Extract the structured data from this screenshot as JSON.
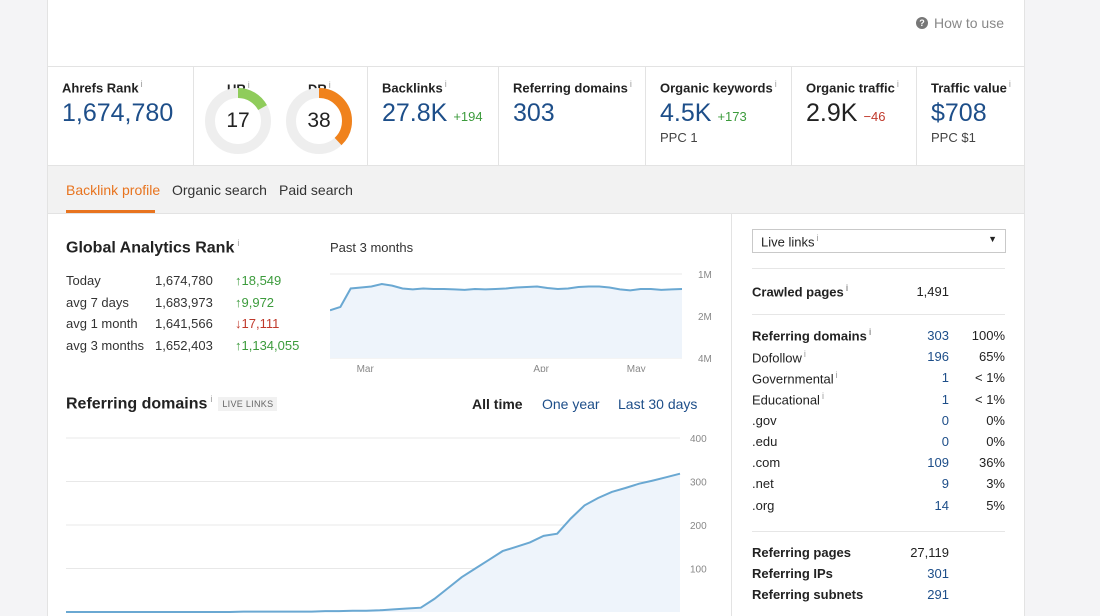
{
  "header": {
    "how_to_use": "How to use",
    "help_icon": "?"
  },
  "metrics": {
    "ahrefs_rank": {
      "label": "Ahrefs Rank",
      "info": "i",
      "value": "1,674,780"
    },
    "ur": {
      "label": "UR",
      "info": "i",
      "value": "17",
      "level": 17
    },
    "dr": {
      "label": "DR",
      "info": "i",
      "value": "38",
      "level": 38
    },
    "backlinks": {
      "label": "Backlinks",
      "info": "i",
      "value": "27.8K",
      "delta": "+194"
    },
    "referring_domains": {
      "label": "Referring domains",
      "info": "i",
      "value": "303"
    },
    "organic_keywords": {
      "label": "Organic keywords",
      "info": "i",
      "value": "4.5K",
      "delta": "+173",
      "sub": "PPC 1"
    },
    "organic_traffic": {
      "label": "Organic traffic",
      "info": "i",
      "value": "2.9K",
      "delta": "−46"
    },
    "traffic_value": {
      "label": "Traffic value",
      "info": "i",
      "value": "$708",
      "sub": "PPC $1"
    }
  },
  "tabs": [
    "Backlink profile",
    "Organic search",
    "Paid search"
  ],
  "global_rank": {
    "title": "Global Analytics Rank",
    "info": "i",
    "period": "Past 3 months",
    "rows": [
      {
        "label": "Today",
        "value": "1,674,780",
        "change": "↑18,549",
        "dir": "up"
      },
      {
        "label": "avg 7 days",
        "value": "1,683,973",
        "change": "↑9,972",
        "dir": "up"
      },
      {
        "label": "avg 1 month",
        "value": "1,641,566",
        "change": "↓17,111",
        "dir": "down"
      },
      {
        "label": "avg 3 months",
        "value": "1,652,403",
        "change": "↑1,134,055",
        "dir": "up"
      }
    ]
  },
  "referring_domains_section": {
    "title": "Referring domains",
    "info": "i",
    "tag": "LIVE LINKS",
    "ranges": [
      "All time",
      "One year",
      "Last 30 days"
    ],
    "active_range": "All time"
  },
  "sidebar": {
    "select": {
      "value": "Live links",
      "info": "i"
    },
    "crawled": {
      "label": "Crawled pages",
      "info": "i",
      "value": "1,491"
    },
    "domains": [
      {
        "label": "Referring domains",
        "info": "i",
        "value": "303",
        "pct": "100%",
        "bold": true
      },
      {
        "label": "Dofollow",
        "info": "i",
        "value": "196",
        "pct": "65%"
      },
      {
        "label": "Governmental",
        "info": "i",
        "value": "1",
        "pct": "< 1%"
      },
      {
        "label": "Educational",
        "info": "i",
        "value": "1",
        "pct": "< 1%"
      },
      {
        "label": ".gov",
        "info": "",
        "value": "0",
        "pct": "0%"
      },
      {
        "label": ".edu",
        "info": "",
        "value": "0",
        "pct": "0%"
      },
      {
        "label": ".com",
        "info": "",
        "value": "109",
        "pct": "36%"
      },
      {
        "label": ".net",
        "info": "",
        "value": "9",
        "pct": "3%"
      },
      {
        "label": ".org",
        "info": "",
        "value": "14",
        "pct": "5%"
      }
    ],
    "bottom": [
      {
        "label": "Referring pages",
        "value": "27,119",
        "linked": false
      },
      {
        "label": "Referring IPs",
        "value": "301",
        "linked": true
      },
      {
        "label": "Referring subnets",
        "value": "291",
        "linked": true
      }
    ]
  },
  "chart_data": [
    {
      "type": "area",
      "title": "Past 3 months",
      "x_ticks": [
        "Mar",
        "Apr",
        "May"
      ],
      "y_ticks": [
        "1M",
        "2M",
        "4M"
      ],
      "scale": "log",
      "ylim": [
        1000000,
        4000000
      ],
      "grid": true,
      "series": [
        {
          "values": [
            1820000,
            1720000,
            1270000,
            1250000,
            1230000,
            1180000,
            1210000,
            1270000,
            1290000,
            1270000,
            1280000,
            1280000,
            1290000,
            1300000,
            1280000,
            1290000,
            1280000,
            1270000,
            1250000,
            1240000,
            1230000,
            1260000,
            1280000,
            1270000,
            1240000,
            1230000,
            1230000,
            1250000,
            1290000,
            1310000,
            1280000,
            1280000,
            1300000,
            1290000,
            1280000
          ]
        }
      ]
    },
    {
      "type": "area",
      "title": "Referring domains",
      "y_ticks": [
        "100",
        "200",
        "300",
        "400"
      ],
      "ylim": [
        0,
        400
      ],
      "grid": true,
      "series": [
        {
          "values": [
            0,
            0,
            0,
            0,
            0,
            0,
            0,
            0,
            0,
            0,
            0,
            0,
            0,
            1,
            1,
            1,
            1,
            1,
            1,
            2,
            2,
            3,
            3,
            4,
            6,
            8,
            10,
            30,
            55,
            80,
            100,
            120,
            140,
            150,
            160,
            175,
            180,
            215,
            245,
            262,
            276,
            285,
            295,
            302,
            310,
            318
          ]
        }
      ]
    }
  ],
  "colors": {
    "accent": "#e8741f",
    "link": "#1d4e89",
    "line": "#6aa8d2",
    "fill": "#eef4fb",
    "ur_gauge": "#8fcc5b",
    "dr_gauge": "#f0821c"
  }
}
